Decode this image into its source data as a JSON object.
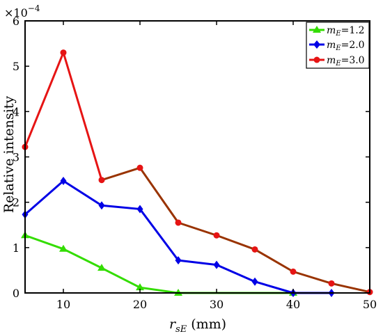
{
  "chart_data": {
    "type": "line",
    "title": "",
    "xlabel_var": "r",
    "xlabel_sub": "sE",
    "xlabel_unit": "(mm)",
    "ylabel": "Relative intensity",
    "y_scale_base": "×10",
    "y_scale_exp": "−4",
    "xlim": [
      5,
      50
    ],
    "ylim": [
      0,
      6
    ],
    "xticks": [
      "10",
      "20",
      "30",
      "40",
      "50"
    ],
    "yticks": [
      "0",
      "1",
      "2",
      "3",
      "4",
      "5",
      "6"
    ],
    "grid": false,
    "legend_position": "top-right",
    "series": [
      {
        "legend_var": "m",
        "legend_sub": "E",
        "legend_value": "=1.2",
        "color": "#33dd00",
        "marker": "triangle",
        "x": [
          5,
          10,
          15,
          20,
          25,
          40
        ],
        "values": [
          1.27,
          0.97,
          0.55,
          0.12,
          0.0,
          0.0
        ]
      },
      {
        "legend_var": "m",
        "legend_sub": "E",
        "legend_value": "=2.0",
        "color": "#0000e6",
        "marker": "diamond",
        "x": [
          5,
          10,
          15,
          20,
          25,
          30,
          35,
          40,
          45
        ],
        "values": [
          1.73,
          2.47,
          1.93,
          1.85,
          0.72,
          0.62,
          0.25,
          0.0,
          0.0
        ]
      },
      {
        "legend_var": "m",
        "legend_sub": "E",
        "legend_value": "=3.0",
        "color": "#e61414",
        "line_color_after": "#993300",
        "marker": "circle",
        "x": [
          5,
          10,
          15,
          20,
          25,
          30,
          35,
          40,
          45,
          50
        ],
        "values": [
          3.22,
          5.3,
          2.49,
          2.76,
          1.55,
          1.27,
          0.96,
          0.47,
          0.21,
          0.02
        ]
      }
    ]
  }
}
